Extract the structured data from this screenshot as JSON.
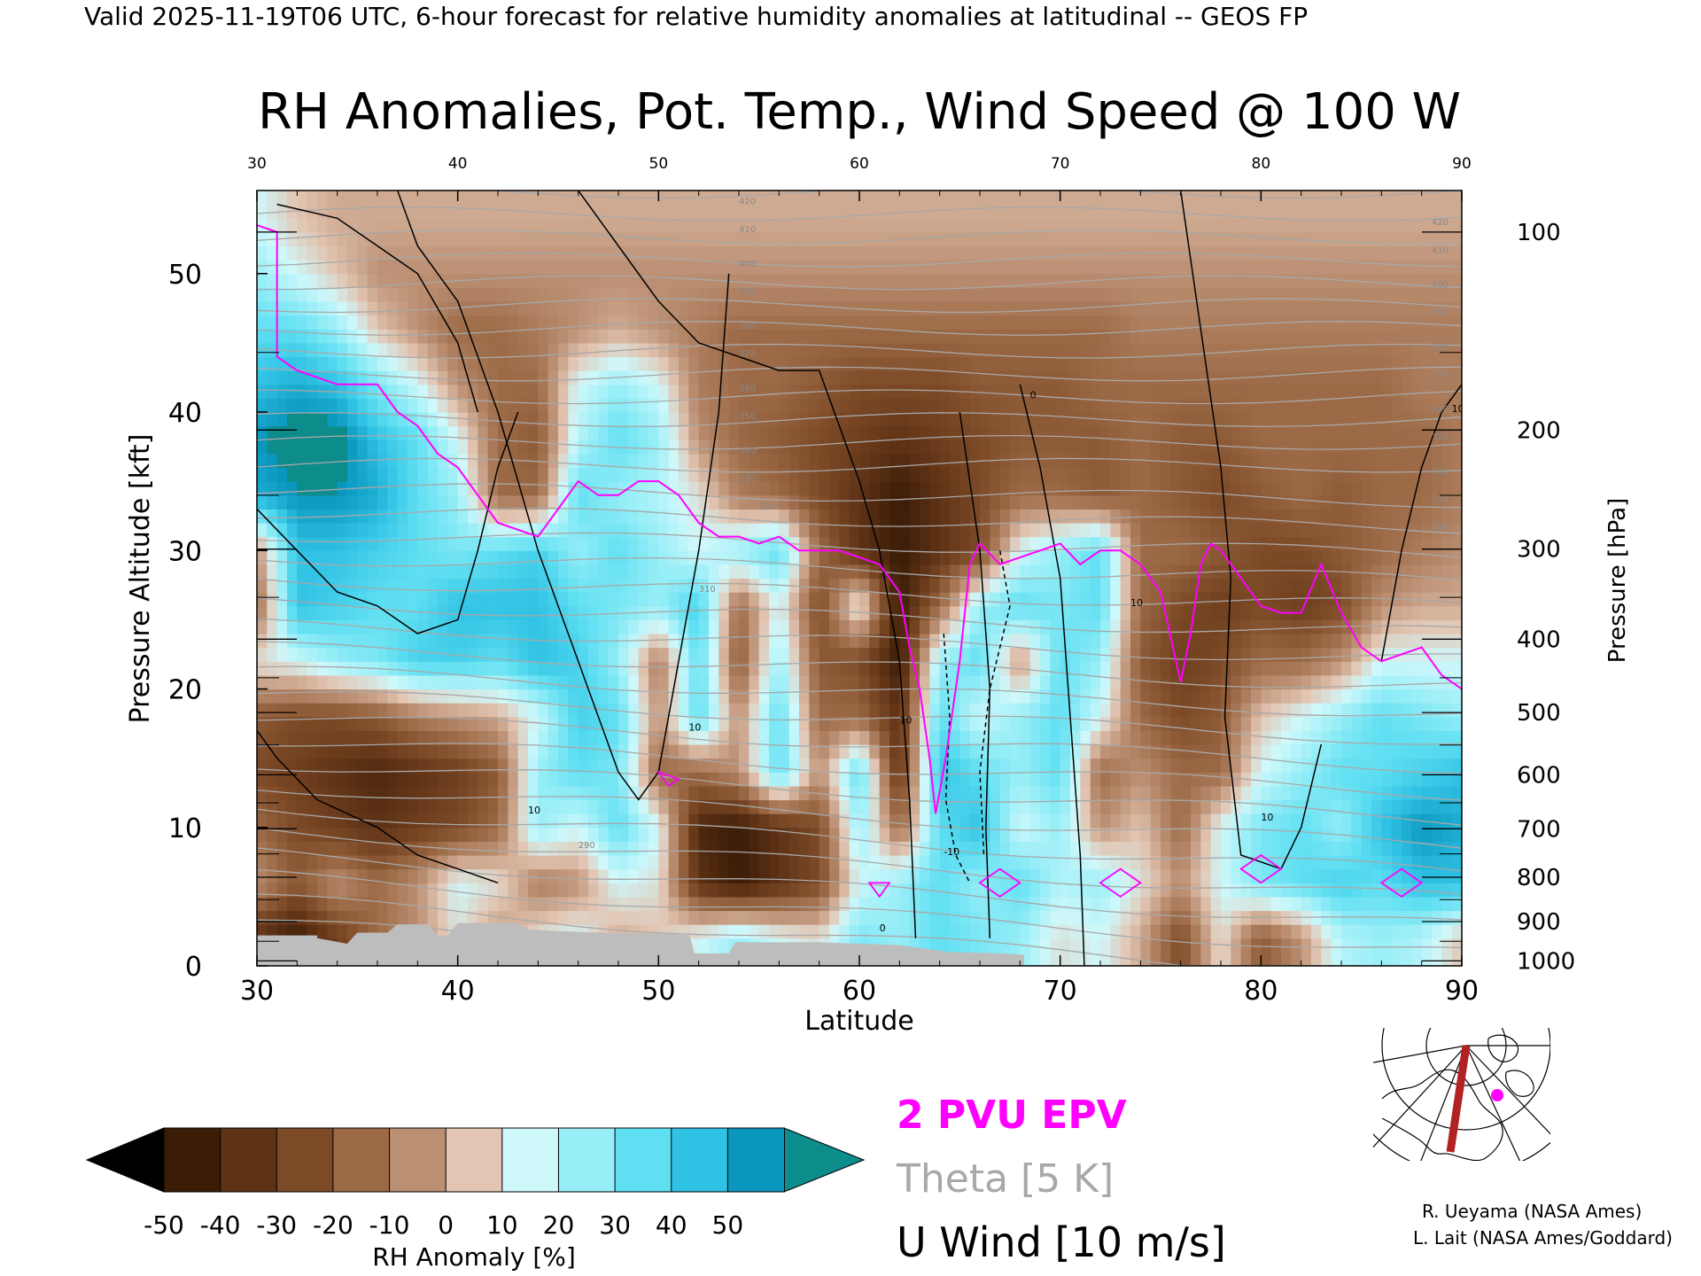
{
  "header": {
    "valid_line": "Valid 2025-11-19T06 UTC, 6-hour forecast for relative humidity anomalies at latitudinal -- GEOS FP",
    "title": "RH Anomalies, Pot. Temp., Wind Speed @ 100 W"
  },
  "colors": {
    "epv_magenta": "#ff00ff",
    "theta_gray": "#a8a8a8",
    "wind_black": "#000000",
    "terrain_gray": "#bdbdbd",
    "map_track": "#b22222"
  },
  "chart_data": {
    "type": "heatmap",
    "xlabel": "Latitude",
    "ylabel": "Pressure Altitude [kft]",
    "y2label": "Pressure [hPa]",
    "xlim": [
      30,
      90
    ],
    "ylim": [
      0,
      56
    ],
    "x_ticks": [
      "30",
      "40",
      "50",
      "60",
      "70",
      "80",
      "90"
    ],
    "x_ticks_top": [
      "30",
      "40",
      "50",
      "60",
      "70",
      "80",
      "90"
    ],
    "y_ticks": [
      {
        "label": "0",
        "kft": 0
      },
      {
        "label": "10",
        "kft": 10
      },
      {
        "label": "20",
        "kft": 20
      },
      {
        "label": "30",
        "kft": 30
      },
      {
        "label": "40",
        "kft": 40
      },
      {
        "label": "50",
        "kft": 50
      }
    ],
    "pressure_ticks": [
      {
        "label": "100",
        "kft": 53.0
      },
      {
        "label": "200",
        "kft": 38.7
      },
      {
        "label": "300",
        "kft": 30.1
      },
      {
        "label": "400",
        "kft": 23.6
      },
      {
        "label": "500",
        "kft": 18.3
      },
      {
        "label": "600",
        "kft": 13.8
      },
      {
        "label": "700",
        "kft": 9.9
      },
      {
        "label": "800",
        "kft": 6.4
      },
      {
        "label": "900",
        "kft": 3.2
      },
      {
        "label": "1000",
        "kft": 0.36
      }
    ],
    "colorbar": {
      "label": "RH Anomaly [%]",
      "tick_labels": [
        "-50",
        "-40",
        "-30",
        "-20",
        "-10",
        "0",
        "10",
        "20",
        "30",
        "40",
        "50"
      ],
      "colors": [
        "#3a1c07",
        "#5e3215",
        "#7d4a27",
        "#9c6a47",
        "#bb8f72",
        "#e2c5b2",
        "#cff8fb",
        "#98eef7",
        "#5fdff2",
        "#30c2e4",
        "#0a97be"
      ],
      "under_color": "#000000",
      "over_color": "#0d8c8c"
    },
    "legend": [
      {
        "label": "2 PVU EPV",
        "color": "#ff00ff"
      },
      {
        "label": "Theta [5 K]",
        "color": "#a8a8a8"
      },
      {
        "label": "U Wind [10 m/s]",
        "color": "#000000"
      }
    ],
    "theta_contour_labels": [
      "290",
      "310",
      "320",
      "330",
      "340",
      "350",
      "360",
      "370",
      "380",
      "390",
      "400",
      "410",
      "420"
    ],
    "wind_contour_labels": [
      "10",
      "0",
      "-10"
    ],
    "pvu2_line": [
      [
        30,
        53.5
      ],
      [
        31,
        53
      ],
      [
        31,
        44
      ],
      [
        32,
        43
      ],
      [
        34,
        42
      ],
      [
        36,
        42
      ],
      [
        37,
        40
      ],
      [
        38,
        39
      ],
      [
        39,
        37
      ],
      [
        40,
        36
      ],
      [
        41,
        34
      ],
      [
        42,
        32
      ],
      [
        43,
        31.5
      ],
      [
        44,
        31
      ],
      [
        45,
        33
      ],
      [
        46,
        35
      ],
      [
        47,
        34
      ],
      [
        48,
        34
      ],
      [
        49,
        35
      ],
      [
        50,
        35
      ],
      [
        51,
        34
      ],
      [
        52,
        32
      ],
      [
        53,
        31
      ],
      [
        54,
        31
      ],
      [
        55,
        30.5
      ],
      [
        56,
        31
      ],
      [
        57,
        30
      ],
      [
        58,
        30
      ],
      [
        59,
        30
      ],
      [
        60,
        29.5
      ],
      [
        61,
        29
      ],
      [
        62,
        27
      ],
      [
        62.5,
        23
      ],
      [
        63,
        20
      ],
      [
        63.5,
        15
      ],
      [
        63.8,
        11
      ],
      [
        64.3,
        15
      ],
      [
        65,
        22
      ],
      [
        65.5,
        29
      ],
      [
        66,
        30.5
      ],
      [
        67,
        29
      ],
      [
        68,
        29.5
      ],
      [
        69,
        30
      ],
      [
        70,
        30.5
      ],
      [
        71,
        29
      ],
      [
        72,
        30
      ],
      [
        73,
        30
      ],
      [
        74,
        29
      ],
      [
        75,
        27
      ],
      [
        76,
        20.5
      ],
      [
        76.5,
        24
      ],
      [
        77,
        29
      ],
      [
        77.5,
        30.5
      ],
      [
        78,
        30
      ],
      [
        79,
        28
      ],
      [
        80,
        26
      ],
      [
        81,
        25.5
      ],
      [
        82,
        25.5
      ],
      [
        83,
        29
      ],
      [
        84,
        25.5
      ],
      [
        85,
        23
      ],
      [
        86,
        22
      ],
      [
        87,
        22.5
      ],
      [
        88,
        23
      ],
      [
        89,
        21
      ],
      [
        90,
        20
      ]
    ],
    "terrain_kft": [
      [
        30,
        2.2
      ],
      [
        33,
        2.2
      ],
      [
        33,
        2.0
      ],
      [
        34.5,
        1.6
      ],
      [
        35,
        2.4
      ],
      [
        36.5,
        2.4
      ],
      [
        37,
        3.0
      ],
      [
        38.5,
        3.0
      ],
      [
        39,
        2.2
      ],
      [
        39.5,
        2.2
      ],
      [
        40,
        3.1
      ],
      [
        43,
        3.1
      ],
      [
        43.5,
        2.6
      ],
      [
        47,
        2.4
      ],
      [
        51,
        2.3
      ],
      [
        51.5,
        2.4
      ],
      [
        51.8,
        0.9
      ],
      [
        53.5,
        0.9
      ],
      [
        53.8,
        1.7
      ],
      [
        58,
        1.7
      ],
      [
        62,
        1.5
      ],
      [
        63.5,
        1.2
      ],
      [
        64.5,
        1.0
      ],
      [
        67,
        0.9
      ],
      [
        68.2,
        0.8
      ],
      [
        68.2,
        0
      ],
      [
        30,
        0
      ]
    ],
    "rh_anomaly_grid": {
      "lat": [
        30,
        32,
        34,
        36,
        38,
        40,
        42,
        44,
        46,
        48,
        50,
        52,
        54,
        56,
        58,
        60,
        62,
        64,
        66,
        68,
        70,
        72,
        74,
        76,
        78,
        80,
        82,
        84,
        86,
        88,
        90
      ],
      "kft": [
        2,
        6,
        10,
        14,
        18,
        22,
        26,
        30,
        34,
        38,
        42,
        46,
        50,
        54
      ],
      "rows": [
        [
          -40,
          -50,
          -35,
          -20,
          -10,
          5,
          -10,
          5,
          10,
          -5,
          0,
          10,
          20,
          10,
          5,
          25,
          20,
          30,
          25,
          20,
          5,
          10,
          -5,
          -30,
          5,
          -25,
          -10,
          15,
          20,
          15,
          0
        ],
        [
          -10,
          -25,
          -10,
          -20,
          -10,
          10,
          5,
          -15,
          -10,
          10,
          5,
          -40,
          -50,
          -40,
          -30,
          10,
          20,
          30,
          20,
          30,
          15,
          20,
          5,
          -10,
          10,
          25,
          30,
          35,
          30,
          40,
          40
        ],
        [
          -20,
          -30,
          -35,
          -40,
          -35,
          -30,
          -20,
          20,
          10,
          30,
          10,
          -45,
          -50,
          -40,
          -30,
          20,
          -20,
          30,
          40,
          10,
          20,
          -10,
          0,
          -20,
          10,
          25,
          30,
          20,
          40,
          50,
          45
        ],
        [
          -30,
          -35,
          -40,
          -45,
          -40,
          -35,
          -25,
          20,
          30,
          25,
          -20,
          -20,
          -10,
          30,
          -10,
          30,
          -40,
          40,
          30,
          20,
          30,
          -20,
          -10,
          -20,
          -20,
          10,
          20,
          30,
          30,
          35,
          40
        ],
        [
          -25,
          -30,
          -30,
          -25,
          -15,
          -10,
          -5,
          10,
          35,
          30,
          -10,
          30,
          -10,
          30,
          -20,
          -20,
          -40,
          30,
          10,
          20,
          30,
          10,
          -20,
          -30,
          -25,
          0,
          10,
          20,
          30,
          25,
          20
        ],
        [
          5,
          10,
          20,
          25,
          35,
          35,
          30,
          40,
          35,
          20,
          -15,
          30,
          -25,
          20,
          -25,
          -30,
          -50,
          20,
          30,
          -10,
          30,
          20,
          -25,
          -35,
          -30,
          -20,
          -20,
          -10,
          10,
          10,
          10
        ],
        [
          -20,
          40,
          35,
          30,
          30,
          40,
          40,
          40,
          30,
          25,
          20,
          35,
          -20,
          10,
          -30,
          10,
          -50,
          -20,
          20,
          30,
          25,
          30,
          -20,
          -30,
          -35,
          -30,
          -35,
          -30,
          -10,
          -5,
          -5
        ],
        [
          -10,
          40,
          40,
          35,
          30,
          25,
          30,
          35,
          20,
          30,
          20,
          10,
          20,
          30,
          -20,
          -40,
          -50,
          -40,
          -30,
          10,
          20,
          30,
          -20,
          -20,
          -25,
          -30,
          -30,
          -25,
          -20,
          -15,
          -10
        ],
        [
          45,
          50,
          50,
          45,
          30,
          20,
          -20,
          -20,
          30,
          20,
          15,
          5,
          -15,
          -20,
          -30,
          -40,
          -50,
          -40,
          -30,
          -20,
          -20,
          -25,
          -20,
          -25,
          -30,
          -25,
          -20,
          -25,
          -20,
          -20,
          -15
        ],
        [
          50,
          55,
          55,
          40,
          30,
          10,
          -20,
          -25,
          15,
          30,
          20,
          -10,
          -20,
          -25,
          -30,
          -35,
          -40,
          -35,
          -30,
          -25,
          -25,
          -25,
          -20,
          -25,
          -25,
          -20,
          -20,
          -20,
          -20,
          -20,
          -15
        ],
        [
          40,
          45,
          40,
          25,
          10,
          -10,
          -20,
          -20,
          10,
          20,
          10,
          -15,
          -20,
          -20,
          -25,
          -30,
          -30,
          -30,
          -25,
          -25,
          -25,
          -20,
          -20,
          -20,
          -20,
          -20,
          -20,
          -20,
          -20,
          -15,
          -15
        ],
        [
          30,
          30,
          20,
          0,
          -10,
          -20,
          -20,
          -15,
          -10,
          -5,
          -10,
          -15,
          -20,
          -20,
          -20,
          -20,
          -20,
          -20,
          -20,
          -20,
          -20,
          -20,
          -15,
          -15,
          -15,
          -15,
          -15,
          -15,
          -15,
          -15,
          -15
        ],
        [
          20,
          10,
          0,
          -10,
          -10,
          -10,
          -10,
          -10,
          -10,
          -10,
          -10,
          -10,
          -10,
          -10,
          -10,
          -10,
          -10,
          -10,
          -10,
          -10,
          -10,
          -10,
          -10,
          -10,
          -10,
          -10,
          -10,
          -10,
          -10,
          -10,
          -10
        ],
        [
          10,
          0,
          -5,
          -5,
          -5,
          -5,
          -5,
          -5,
          -5,
          -5,
          -5,
          -5,
          -5,
          -5,
          -5,
          -5,
          -5,
          -5,
          -5,
          -5,
          -5,
          -5,
          -5,
          -5,
          -5,
          -5,
          -5,
          -5,
          -5,
          -5,
          -5
        ]
      ]
    }
  },
  "inset_map": {
    "description_icon": "north-america-polar-map-icon"
  },
  "credits": [
    "R. Ueyama (NASA Ames)",
    "L. Lait (NASA Ames/Goddard)"
  ]
}
